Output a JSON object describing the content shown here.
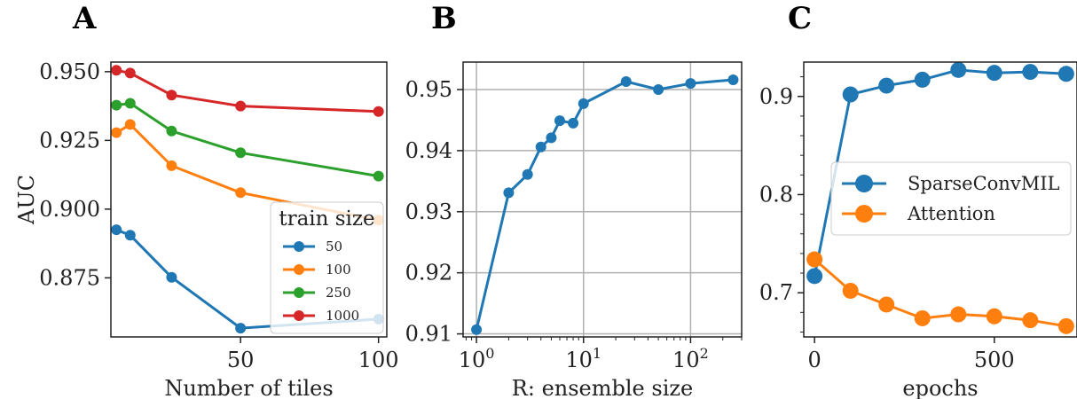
{
  "chart_data": [
    {
      "panel": "A",
      "type": "line",
      "xlabel": "Number of tiles",
      "ylabel": "AUC",
      "xlim": [
        3,
        103
      ],
      "ylim": [
        0.8535,
        0.9535
      ],
      "xticks": [
        50,
        100
      ],
      "yticks": [
        0.875,
        0.9,
        0.925,
        0.95
      ],
      "ytick_labels": [
        "0.875",
        "0.900",
        "0.925",
        "0.950"
      ],
      "grid": false,
      "legend": {
        "title": "train size",
        "placement": "lower-right"
      },
      "series": [
        {
          "name": "50",
          "color": "#1f77b4",
          "x": [
            5,
            10,
            25,
            50,
            100
          ],
          "y": [
            0.8925,
            0.8905,
            0.8752,
            0.8567,
            0.86
          ]
        },
        {
          "name": "100",
          "color": "#ff7f0e",
          "x": [
            5,
            10,
            25,
            50,
            100
          ],
          "y": [
            0.9278,
            0.9308,
            0.9158,
            0.906,
            0.896
          ]
        },
        {
          "name": "250",
          "color": "#2ca02c",
          "x": [
            5,
            10,
            25,
            50,
            100
          ],
          "y": [
            0.9378,
            0.9385,
            0.9284,
            0.9205,
            0.912
          ]
        },
        {
          "name": "1000",
          "color": "#d62728",
          "x": [
            5,
            10,
            25,
            50,
            100
          ],
          "y": [
            0.9505,
            0.9495,
            0.9415,
            0.9375,
            0.9355
          ]
        }
      ]
    },
    {
      "panel": "B",
      "type": "line",
      "xlabel": "R: ensemble size",
      "xscale": "log",
      "xlim": [
        0.75,
        300
      ],
      "ylim": [
        0.9095,
        0.9545
      ],
      "xticks": [
        1,
        10,
        100
      ],
      "xtick_labels": [
        "10^0",
        "10^1",
        "10^2"
      ],
      "yticks": [
        0.91,
        0.92,
        0.93,
        0.94,
        0.95
      ],
      "ytick_labels": [
        "0.91",
        "0.92",
        "0.93",
        "0.94",
        "0.95"
      ],
      "grid": true,
      "series": [
        {
          "color": "#1f77b4",
          "x": [
            1,
            2,
            3,
            4,
            5,
            6,
            8,
            10,
            25,
            50,
            100,
            250
          ],
          "y": [
            0.9107,
            0.9331,
            0.9361,
            0.9406,
            0.9421,
            0.9449,
            0.9445,
            0.9477,
            0.9513,
            0.95,
            0.951,
            0.9516
          ]
        }
      ]
    },
    {
      "panel": "C",
      "type": "line",
      "xlabel": "epochs",
      "xlim": [
        -30,
        730
      ],
      "ylim": [
        0.655,
        0.935
      ],
      "xticks": [
        0,
        500
      ],
      "yticks": [
        0.7,
        0.8,
        0.9
      ],
      "ytick_labels": [
        "0.7",
        "0.8",
        "0.9"
      ],
      "grid": false,
      "legend": {
        "placement": "center-right"
      },
      "series": [
        {
          "name": "SparseConvMIL",
          "color": "#1f77b4",
          "x": [
            0,
            100,
            200,
            300,
            400,
            500,
            600,
            700
          ],
          "y": [
            0.717,
            0.902,
            0.911,
            0.917,
            0.927,
            0.924,
            0.925,
            0.923
          ]
        },
        {
          "name": "Attention",
          "color": "#ff7f0e",
          "x": [
            0,
            100,
            200,
            300,
            400,
            500,
            600,
            700
          ],
          "y": [
            0.734,
            0.702,
            0.688,
            0.674,
            0.678,
            0.676,
            0.672,
            0.666
          ]
        }
      ]
    }
  ]
}
